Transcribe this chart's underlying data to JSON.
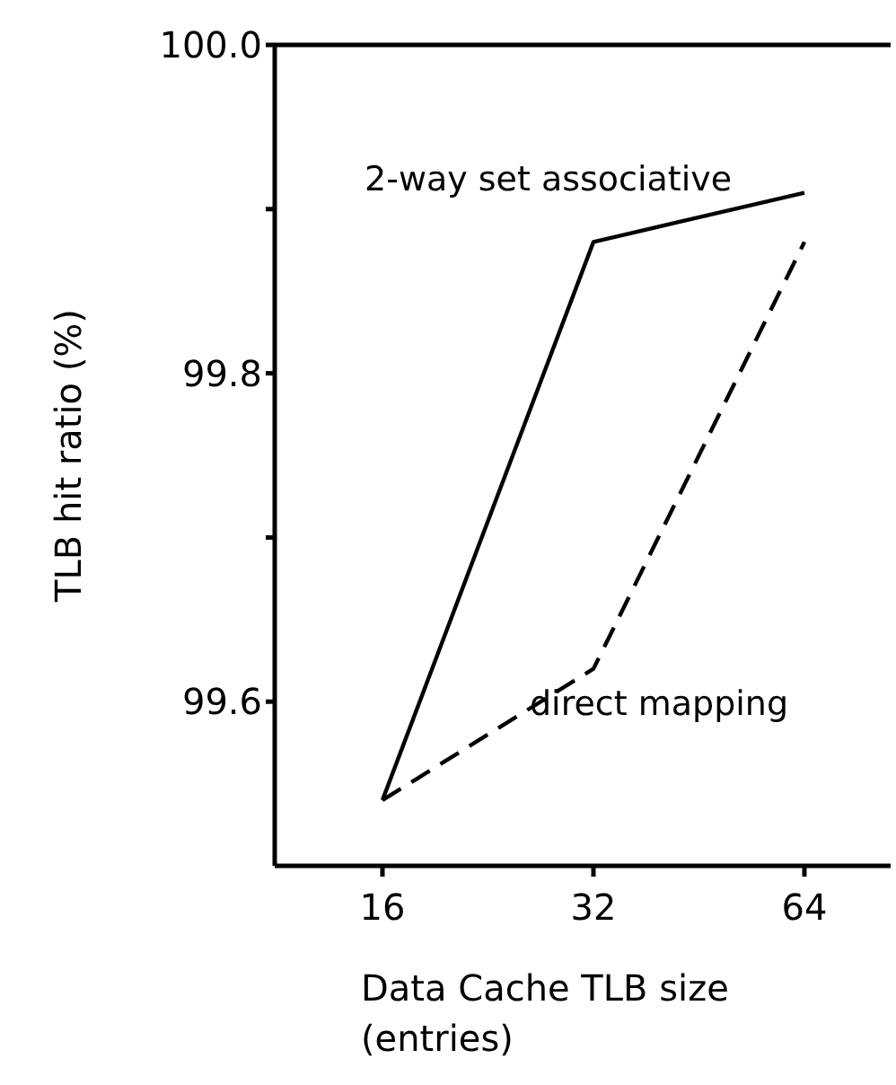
{
  "chart_data": {
    "type": "line",
    "xlabel": "Data Cache TLB size (entries)",
    "ylabel": "TLB hit ratio (%)",
    "categories": [
      "16",
      "32",
      "64"
    ],
    "series": [
      {
        "name": "2-way set associative",
        "color": "#000000",
        "line_style": "solid",
        "values": [
          99.54,
          99.88,
          99.91
        ]
      },
      {
        "name": "direct mapping",
        "color": "#000000",
        "line_style": "dashed",
        "values": [
          99.54,
          99.62,
          99.88
        ]
      }
    ],
    "ylim": [
      99.5,
      100.0
    ],
    "yticks": [
      {
        "value": 99.6,
        "label": "99.6"
      },
      {
        "value": 99.7,
        "label": null
      },
      {
        "value": 99.8,
        "label": "99.8"
      },
      {
        "value": 99.9,
        "label": null
      },
      {
        "value": 100.0,
        "label": "100.0"
      }
    ],
    "marker": "none",
    "legend": false,
    "grid": false
  }
}
